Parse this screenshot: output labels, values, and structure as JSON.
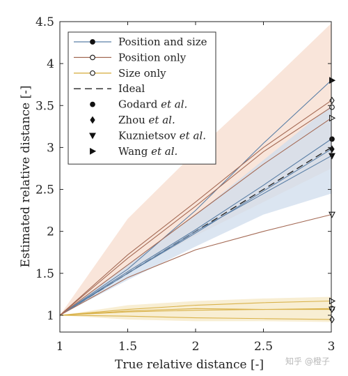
{
  "chart_data": {
    "type": "line",
    "title": "",
    "xlabel": "True relative distance [-]",
    "ylabel": "Estimated relative distance [-]",
    "xlim": [
      1,
      3
    ],
    "ylim": [
      0.8,
      4.5
    ],
    "xticks": [
      "1",
      "1.5",
      "2",
      "2.5",
      "3"
    ],
    "yticks": [
      "1",
      "1.5",
      "2",
      "2.5",
      "3",
      "3.5",
      "4",
      "4.5"
    ],
    "grid": false,
    "legend_placement": "top-left",
    "colors": {
      "position_and_size": "#5b7fa6",
      "position_only": "#a46a55",
      "size_only": "#d9b24a",
      "ideal": "#222222",
      "band_position_and_size": "#cfdcec",
      "band_position_only": "#f7dccd",
      "band_size_only": "#f6e8c4"
    },
    "legend": [
      {
        "label": "Position and size",
        "marker": "filled-circle",
        "line": "position_and_size"
      },
      {
        "label": "Position only",
        "marker": "open-circle",
        "line": "position_only"
      },
      {
        "label": "Size only",
        "marker": "open-circle",
        "line": "size_only"
      },
      {
        "label": "Ideal",
        "marker": "",
        "line": "ideal-dashed"
      },
      {
        "label": "Godard",
        "label_em": "et al.",
        "marker": "filled-circle"
      },
      {
        "label": "Zhou",
        "label_em": "et al.",
        "marker": "filled-diamond"
      },
      {
        "label": "Kuznietsov",
        "label_em": "et al.",
        "marker": "filled-triangle-down"
      },
      {
        "label": "Wang",
        "label_em": "et al.",
        "marker": "filled-triangle-right"
      }
    ],
    "bands": [
      {
        "name": "Position only",
        "x": [
          1,
          1.5,
          2,
          2.5,
          3
        ],
        "lower": [
          1,
          1.5,
          1.95,
          2.35,
          2.75
        ],
        "upper": [
          1,
          2.15,
          2.95,
          3.7,
          4.48
        ]
      },
      {
        "name": "Position and size",
        "x": [
          1,
          1.5,
          2,
          2.5,
          3
        ],
        "lower": [
          1,
          1.42,
          1.82,
          2.2,
          2.45
        ],
        "upper": [
          1,
          1.6,
          2.2,
          2.85,
          3.5
        ]
      },
      {
        "name": "Size only",
        "x": [
          1,
          1.5,
          2,
          2.5,
          3
        ],
        "lower": [
          1,
          0.95,
          0.93,
          0.93,
          0.92
        ],
        "upper": [
          1,
          1.12,
          1.17,
          1.2,
          1.22
        ]
      }
    ],
    "series": [
      {
        "name": "Ideal",
        "group": "ideal",
        "x": [
          1,
          3
        ],
        "y": [
          1,
          3
        ]
      },
      {
        "group": "position_and_size",
        "x": [
          1,
          1.5,
          2,
          2.5,
          3
        ],
        "y": [
          1,
          1.52,
          2.02,
          2.55,
          3.1
        ],
        "end_marker": "filled-circle"
      },
      {
        "group": "position_and_size",
        "x": [
          1,
          1.5,
          2,
          2.5,
          3
        ],
        "y": [
          1,
          1.5,
          1.98,
          2.48,
          2.98
        ],
        "end_marker": "filled-diamond"
      },
      {
        "group": "position_and_size",
        "x": [
          1,
          1.5,
          2,
          2.5,
          3
        ],
        "y": [
          1,
          1.5,
          2.0,
          2.45,
          2.9
        ],
        "end_marker": "filled-triangle-down"
      },
      {
        "group": "position_and_size",
        "x": [
          1,
          1.5,
          2,
          2.5,
          3
        ],
        "y": [
          1,
          1.55,
          2.25,
          3.05,
          3.8
        ],
        "end_marker": "filled-triangle-right"
      },
      {
        "group": "position_only",
        "x": [
          1,
          1.5,
          2,
          2.5,
          3
        ],
        "y": [
          1,
          1.68,
          2.3,
          2.95,
          3.48
        ],
        "end_marker": "open-circle"
      },
      {
        "group": "position_only",
        "x": [
          1,
          1.5,
          2,
          2.5,
          3
        ],
        "y": [
          1,
          1.72,
          2.35,
          3.0,
          3.56
        ],
        "end_marker": "open-diamond"
      },
      {
        "group": "position_only",
        "x": [
          1,
          1.5,
          2,
          2.5,
          3
        ],
        "y": [
          1,
          1.6,
          2.2,
          2.8,
          3.35
        ],
        "end_marker": "open-triangle-right"
      },
      {
        "group": "position_only",
        "x": [
          1,
          1.5,
          2,
          2.5,
          3
        ],
        "y": [
          1,
          1.45,
          1.78,
          2.0,
          2.2
        ],
        "end_marker": "open-triangle-down"
      },
      {
        "group": "size_only",
        "x": [
          1,
          1.5,
          2,
          2.5,
          3
        ],
        "y": [
          1,
          1.05,
          1.08,
          1.07,
          1.08
        ],
        "end_marker": "open-circle"
      },
      {
        "group": "size_only",
        "x": [
          1,
          1.5,
          2,
          2.5,
          3
        ],
        "y": [
          1,
          0.99,
          0.97,
          0.96,
          0.95
        ],
        "end_marker": "open-diamond"
      },
      {
        "group": "size_only",
        "x": [
          1,
          1.5,
          2,
          2.5,
          3
        ],
        "y": [
          1,
          1.04,
          1.06,
          1.07,
          1.07
        ],
        "end_marker": "open-triangle-down"
      },
      {
        "group": "size_only",
        "x": [
          1,
          1.5,
          2,
          2.5,
          3
        ],
        "y": [
          1,
          1.07,
          1.12,
          1.15,
          1.17
        ],
        "end_marker": "open-triangle-right"
      }
    ]
  },
  "watermark": "知乎 @橙子"
}
